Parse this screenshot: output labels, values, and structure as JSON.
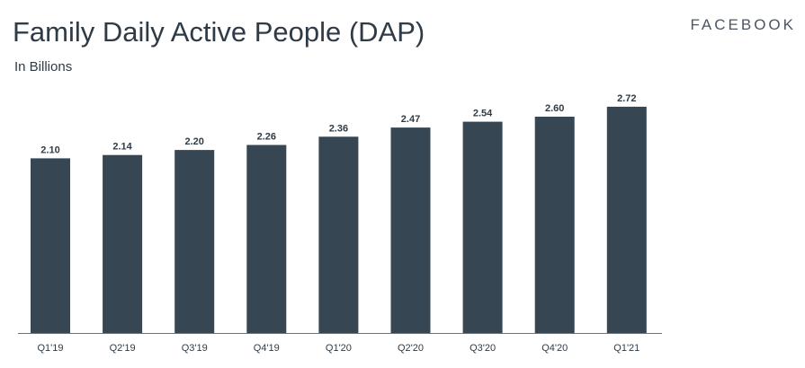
{
  "header": {
    "title": "Family Daily Active People (DAP)",
    "subtitle": "In Billions",
    "brand": "FACEBOOK"
  },
  "colors": {
    "bar": "#364653",
    "axis": "#6b7280",
    "text": "#2f3b46"
  },
  "chart_data": {
    "type": "bar",
    "title": "Family Daily Active People (DAP)",
    "subtitle": "In Billions",
    "xlabel": "",
    "ylabel": "",
    "categories": [
      "Q1'19",
      "Q2'19",
      "Q3'19",
      "Q4'19",
      "Q1'20",
      "Q2'20",
      "Q3'20",
      "Q4'20",
      "Q1'21"
    ],
    "values": [
      2.1,
      2.14,
      2.2,
      2.26,
      2.36,
      2.47,
      2.54,
      2.6,
      2.72
    ],
    "value_labels": [
      "2.10",
      "2.14",
      "2.20",
      "2.26",
      "2.36",
      "2.47",
      "2.54",
      "2.60",
      "2.72"
    ],
    "ylim": [
      0,
      2.87
    ],
    "grid": false,
    "legend": "none"
  }
}
